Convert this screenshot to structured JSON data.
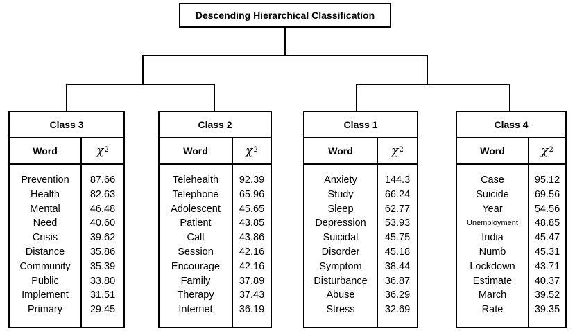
{
  "title": "Descending Hierarchical Classification",
  "column_headers": {
    "word": "Word",
    "chi_symbol": "χ",
    "chi_exponent": "2"
  },
  "classes": [
    {
      "name": "Class 3",
      "words": [
        "Prevention",
        "Health",
        "Mental",
        "Need",
        "Crisis",
        "Distance",
        "Community",
        "Public",
        "Implement",
        "Primary"
      ],
      "values": [
        "87.66",
        "82.63",
        "46.48",
        "40.60",
        "39.62",
        "35.86",
        "35.39",
        "33.80",
        "31.51",
        "29.45"
      ]
    },
    {
      "name": "Class 2",
      "words": [
        "Telehealth",
        "Telephone",
        "Adolescent",
        "Patient",
        "Call",
        "Session",
        "Encourage",
        "Family",
        "Therapy",
        "Internet"
      ],
      "values": [
        "92.39",
        "65.96",
        "45.65",
        "43.85",
        "43.86",
        "42.16",
        "42.16",
        "37.89",
        "37.43",
        "36.19"
      ]
    },
    {
      "name": "Class 1",
      "words": [
        "Anxiety",
        "Study",
        "Sleep",
        "Depression",
        "Suicidal",
        "Disorder",
        "Symptom",
        "Disturbance",
        "Abuse",
        "Stress"
      ],
      "values": [
        "144.3",
        "66.24",
        "62.77",
        "53.93",
        "45.75",
        "45.18",
        "38.44",
        "36.87",
        "36.29",
        "32.69"
      ]
    },
    {
      "name": "Class 4",
      "words": [
        "Case",
        "Suicide",
        "Year",
        "Unemployment",
        "India",
        "Numb",
        "Lockdown",
        "Estimate",
        "March",
        "Rate"
      ],
      "values": [
        "95.12",
        "69.56",
        "54.56",
        "48.85",
        "45.47",
        "45.31",
        "43.71",
        "40.37",
        "39.52",
        "39.35"
      ]
    }
  ]
}
